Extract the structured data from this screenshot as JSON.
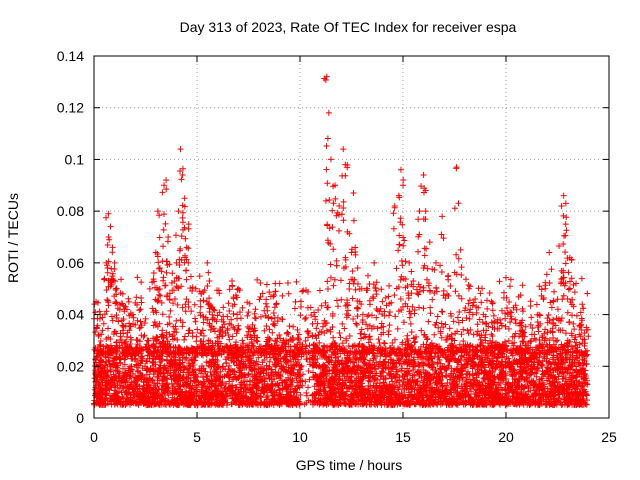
{
  "chart_data": {
    "type": "scatter",
    "title": "Day 313 of 2023, Rate Of TEC Index for receiver espa",
    "xlabel": "GPS time / hours",
    "ylabel": "ROTI / TECUs",
    "xlim": [
      0,
      25
    ],
    "ylim": [
      0,
      0.14
    ],
    "x_ticks": [
      "0",
      "5",
      "10",
      "15",
      "20",
      "25"
    ],
    "y_ticks": [
      "0",
      "0.02",
      "0.04",
      "0.06",
      "0.08",
      "0.1",
      "0.12",
      "0.14"
    ],
    "grid": true,
    "marker": "+",
    "series": [
      {
        "color": "#ff0000",
        "points": [
          [
            0.1,
            0.045
          ],
          [
            0.3,
            0.04
          ],
          [
            0.6,
            0.06
          ],
          [
            0.7,
            0.079
          ],
          [
            0.8,
            0.074
          ],
          [
            0.9,
            0.066
          ],
          [
            1.0,
            0.06
          ],
          [
            1.1,
            0.05
          ],
          [
            1.4,
            0.048
          ],
          [
            1.6,
            0.042
          ],
          [
            1.8,
            0.04
          ],
          [
            2.0,
            0.036
          ],
          [
            2.3,
            0.032
          ],
          [
            2.6,
            0.03
          ],
          [
            3.0,
            0.064
          ],
          [
            3.1,
            0.08
          ],
          [
            3.2,
            0.058
          ],
          [
            3.4,
            0.09
          ],
          [
            3.5,
            0.092
          ],
          [
            3.6,
            0.07
          ],
          [
            3.8,
            0.056
          ],
          [
            4.0,
            0.06
          ],
          [
            4.1,
            0.08
          ],
          [
            4.2,
            0.104
          ],
          [
            4.3,
            0.094
          ],
          [
            4.4,
            0.085
          ],
          [
            4.5,
            0.066
          ],
          [
            4.6,
            0.075
          ],
          [
            5.2,
            0.048
          ],
          [
            5.5,
            0.06
          ],
          [
            5.6,
            0.053
          ],
          [
            5.8,
            0.042
          ],
          [
            6.2,
            0.038
          ],
          [
            6.7,
            0.053
          ],
          [
            7.0,
            0.05
          ],
          [
            7.2,
            0.03
          ],
          [
            7.7,
            0.036
          ],
          [
            8.4,
            0.043
          ],
          [
            8.7,
            0.047
          ],
          [
            8.8,
            0.052
          ],
          [
            9.2,
            0.03
          ],
          [
            10.0,
            0.029
          ],
          [
            10.6,
            0.032
          ],
          [
            11.3,
            0.132
          ],
          [
            11.4,
            0.118
          ],
          [
            11.5,
            0.1
          ],
          [
            11.7,
            0.09
          ],
          [
            11.9,
            0.082
          ],
          [
            12.1,
            0.104
          ],
          [
            12.2,
            0.098
          ],
          [
            12.3,
            0.072
          ],
          [
            12.5,
            0.064
          ],
          [
            12.6,
            0.087
          ],
          [
            12.8,
            0.058
          ],
          [
            13.0,
            0.05
          ],
          [
            13.3,
            0.055
          ],
          [
            13.6,
            0.06
          ],
          [
            14.0,
            0.045
          ],
          [
            14.3,
            0.047
          ],
          [
            14.6,
            0.082
          ],
          [
            14.8,
            0.086
          ],
          [
            14.9,
            0.096
          ],
          [
            15.0,
            0.09
          ],
          [
            15.3,
            0.06
          ],
          [
            15.5,
            0.053
          ],
          [
            15.8,
            0.08
          ],
          [
            16.0,
            0.094
          ],
          [
            16.1,
            0.088
          ],
          [
            16.3,
            0.068
          ],
          [
            16.6,
            0.06
          ],
          [
            16.9,
            0.078
          ],
          [
            17.2,
            0.055
          ],
          [
            17.6,
            0.097
          ],
          [
            17.8,
            0.065
          ],
          [
            18.2,
            0.05
          ],
          [
            18.5,
            0.046
          ],
          [
            18.9,
            0.04
          ],
          [
            19.3,
            0.045
          ],
          [
            19.6,
            0.038
          ],
          [
            20.2,
            0.041
          ],
          [
            20.8,
            0.034
          ],
          [
            21.2,
            0.036
          ],
          [
            21.6,
            0.04
          ],
          [
            21.9,
            0.05
          ],
          [
            22.1,
            0.064
          ],
          [
            22.3,
            0.045
          ],
          [
            22.7,
            0.082
          ],
          [
            22.8,
            0.086
          ],
          [
            22.9,
            0.075
          ],
          [
            23.1,
            0.062
          ],
          [
            23.4,
            0.052
          ],
          [
            23.7,
            0.044
          ],
          [
            23.9,
            0.035
          ]
        ],
        "typical_band": [
          0.005,
          0.028
        ]
      }
    ]
  }
}
